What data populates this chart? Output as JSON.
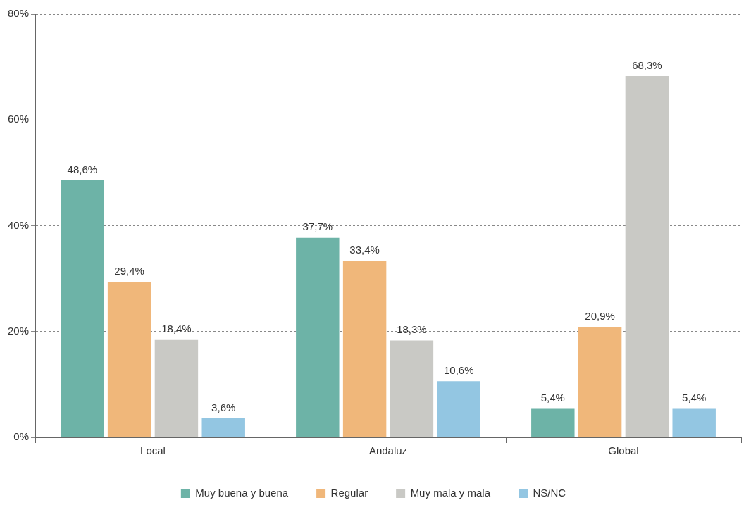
{
  "chart_data": {
    "type": "bar",
    "categories": [
      "Local",
      "Andaluz",
      "Global"
    ],
    "series": [
      {
        "name": "Muy buena y buena",
        "color": "#6db3a7",
        "values": [
          48.6,
          37.7,
          5.4
        ],
        "value_labels": [
          "48,6%",
          "37,7%",
          "5,4%"
        ]
      },
      {
        "name": "Regular",
        "color": "#f0b77a",
        "values": [
          29.4,
          33.4,
          20.9
        ],
        "value_labels": [
          "29,4%",
          "33,4%",
          "20,9%"
        ]
      },
      {
        "name": "Muy mala y mala",
        "color": "#c9c9c5",
        "values": [
          18.4,
          18.3,
          68.3
        ],
        "value_labels": [
          "18,4%",
          "18,3%",
          "68,3%"
        ]
      },
      {
        "name": "NS/NC",
        "color": "#93c6e2",
        "values": [
          3.6,
          10.6,
          5.4
        ],
        "value_labels": [
          "3,6%",
          "10,6%",
          "5,4%"
        ]
      }
    ],
    "ylim": [
      0,
      80
    ],
    "yticks": [
      {
        "value": 0,
        "label": "0%"
      },
      {
        "value": 20,
        "label": "20%"
      },
      {
        "value": 40,
        "label": "40%"
      },
      {
        "value": 60,
        "label": "60%"
      },
      {
        "value": 80,
        "label": "80%"
      }
    ],
    "grid": "y",
    "legend": "bottom"
  }
}
